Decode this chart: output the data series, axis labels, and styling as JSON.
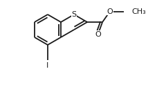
{
  "bg_color": "#ffffff",
  "line_color": "#1a1a1a",
  "lw": 1.3,
  "bl": 22,
  "atoms": {
    "S": "S",
    "O1": "O",
    "O2": "O",
    "I": "I",
    "CH3": "CH₃"
  },
  "fs": 8.0
}
